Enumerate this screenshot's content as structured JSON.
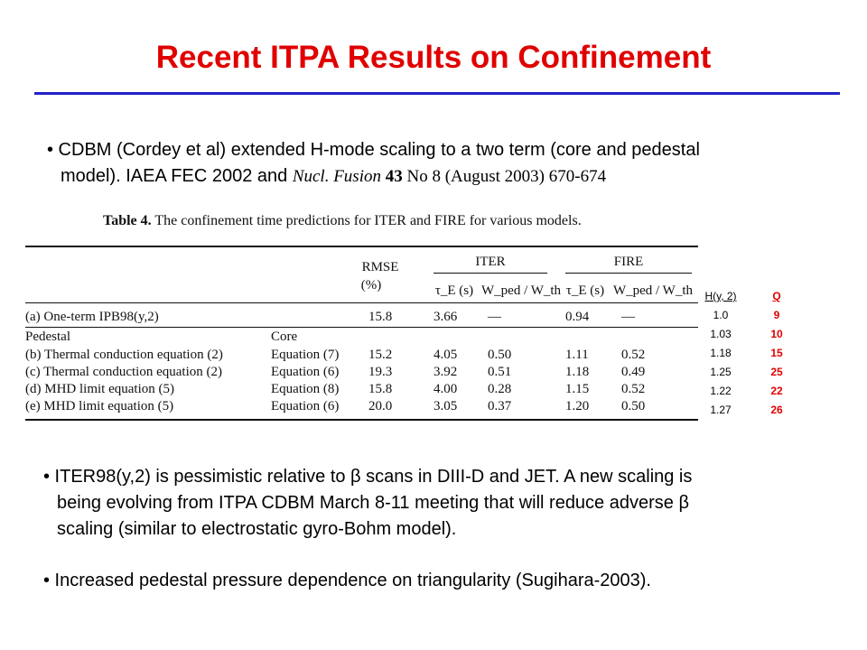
{
  "slide": {
    "title": "Recent ITPA Results on Confinement",
    "bullet1_line1": "• CDBM (Cordey et al) extended H-mode scaling to a two term (core and pedestal",
    "bullet1_line2_plain": "model).  IAEA FEC 2002 and ",
    "bullet1_journal": "Nucl. Fusion",
    "bullet1_volume": "43",
    "bullet1_ref_rest": " No 8 (August 2003) 670-674",
    "bullet2_line1": "• ITER98(y,2) is pessimistic relative to β scans in DIII-D and JET. A new scaling is",
    "bullet2_line2": "being evolving from ITPA CDBM March 8-11 meeting that  will reduce adverse β",
    "bullet2_line3": "scaling (similar to electrostatic gyro-Bohm model).",
    "bullet3": "• Increased pedestal pressure dependence on triangularity (Sugihara-2003)."
  },
  "table": {
    "caption_bold": "Table 4.",
    "caption_rest": "  The confinement time predictions for ITER and FIRE for various models.",
    "group_iter": "ITER",
    "group_fire": "FIRE",
    "col_rmse": "RMSE",
    "col_rmse_unit": "(%)",
    "col_tau": "τ_E (s)",
    "col_wped": "W_ped / W_th",
    "row_a": {
      "label": "(a) One-term IPB98(y,2)",
      "core": "",
      "rmse": "15.8",
      "iter_tau": "3.66",
      "iter_w": "—",
      "fire_tau": "0.94",
      "fire_w": "—"
    },
    "sub_pedestal": "Pedestal",
    "sub_core": "Core",
    "rows": [
      {
        "label": "(b) Thermal conduction equation (2)",
        "core": "Equation (7)",
        "rmse": "15.2",
        "iter_tau": "4.05",
        "iter_w": "0.50",
        "fire_tau": "1.11",
        "fire_w": "0.52"
      },
      {
        "label": "(c) Thermal conduction equation (2)",
        "core": "Equation (6)",
        "rmse": "19.3",
        "iter_tau": "3.92",
        "iter_w": "0.51",
        "fire_tau": "1.18",
        "fire_w": "0.49"
      },
      {
        "label": "(d) MHD limit equation (5)",
        "core": "Equation (8)",
        "rmse": "15.8",
        "iter_tau": "4.00",
        "iter_w": "0.28",
        "fire_tau": "1.15",
        "fire_w": "0.52"
      },
      {
        "label": "(e) MHD limit equation (5)",
        "core": "Equation (6)",
        "rmse": "20.0",
        "iter_tau": "3.05",
        "iter_w": "0.37",
        "fire_tau": "1.20",
        "fire_w": "0.50"
      }
    ]
  },
  "side_table": {
    "h_header": "H(y, 2)",
    "q_header": "Q",
    "h_values": [
      "1.0",
      "1.03",
      "1.18",
      "1.25",
      "1.22",
      "1.27"
    ],
    "q_values": [
      "9",
      "10",
      "15",
      "25",
      "22",
      "26"
    ]
  },
  "colors": {
    "title": "#e00000",
    "rule": "#2222c8",
    "q_values": "#e00000"
  }
}
